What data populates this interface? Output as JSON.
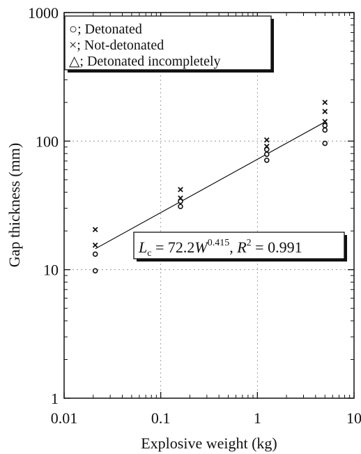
{
  "chart_data": {
    "type": "scatter",
    "x_scale": "log",
    "y_scale": "log",
    "xlim": [
      0.01,
      10
    ],
    "ylim": [
      1,
      1000
    ],
    "grid": true,
    "xlabel": "Explosive weight (kg)",
    "ylabel": "Gap thickness (mm)",
    "x_ticks": [
      0.01,
      0.1,
      1,
      10
    ],
    "x_tick_labels": [
      "0.01",
      "0.1",
      "1",
      "10"
    ],
    "y_ticks": [
      1,
      10,
      100,
      1000
    ],
    "y_tick_labels": [
      "1",
      "10",
      "100",
      "1000"
    ],
    "legend": {
      "position": "top-left",
      "entries": [
        {
          "marker": "○",
          "label": "; Detonated"
        },
        {
          "marker": "×",
          "label": "; Not-detonated"
        },
        {
          "marker": "△",
          "label": "; Detonated incompletely"
        }
      ]
    },
    "series": [
      {
        "name": "Detonated",
        "marker": "circle",
        "points": [
          {
            "x": 0.021,
            "y": 9.8
          },
          {
            "x": 0.021,
            "y": 13.2
          },
          {
            "x": 0.16,
            "y": 31
          },
          {
            "x": 0.16,
            "y": 34
          },
          {
            "x": 1.25,
            "y": 71
          },
          {
            "x": 1.25,
            "y": 79
          },
          {
            "x": 1.25,
            "y": 86
          },
          {
            "x": 5.0,
            "y": 96
          },
          {
            "x": 5.0,
            "y": 122
          },
          {
            "x": 5.0,
            "y": 132
          }
        ]
      },
      {
        "name": "Not-detonated",
        "marker": "x",
        "points": [
          {
            "x": 0.021,
            "y": 15.5
          },
          {
            "x": 0.021,
            "y": 20.5
          },
          {
            "x": 0.16,
            "y": 36
          },
          {
            "x": 0.16,
            "y": 42
          },
          {
            "x": 1.25,
            "y": 91
          },
          {
            "x": 1.25,
            "y": 102
          },
          {
            "x": 5.0,
            "y": 142
          },
          {
            "x": 5.0,
            "y": 170
          },
          {
            "x": 5.0,
            "y": 200
          }
        ]
      }
    ],
    "fit": {
      "coefficient": 72.2,
      "exponent": 0.415,
      "x_range": [
        0.021,
        5.0
      ]
    },
    "annotation": {
      "lhs": "L",
      "lhs_sub": "c",
      "equals": " = 72.2",
      "var": "W",
      "exponent": "0.415",
      "r": "R",
      "r_sup": "2",
      "r_value": " = 0.991",
      "separator": ", "
    }
  }
}
